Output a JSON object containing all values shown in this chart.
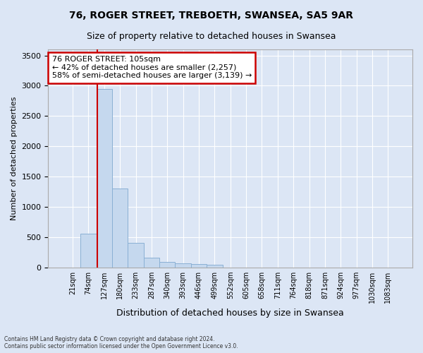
{
  "title1": "76, ROGER STREET, TREBOETH, SWANSEA, SA5 9AR",
  "title2": "Size of property relative to detached houses in Swansea",
  "xlabel": "Distribution of detached houses by size in Swansea",
  "ylabel": "Number of detached properties",
  "footnote": "Contains HM Land Registry data © Crown copyright and database right 2024.\nContains public sector information licensed under the Open Government Licence v3.0.",
  "categories": [
    "21sqm",
    "74sqm",
    "127sqm",
    "180sqm",
    "233sqm",
    "287sqm",
    "340sqm",
    "393sqm",
    "446sqm",
    "499sqm",
    "552sqm",
    "605sqm",
    "658sqm",
    "711sqm",
    "764sqm",
    "818sqm",
    "871sqm",
    "924sqm",
    "977sqm",
    "1030sqm",
    "1083sqm"
  ],
  "values": [
    0,
    555,
    2950,
    1300,
    400,
    155,
    90,
    62,
    50,
    38,
    0,
    0,
    0,
    0,
    0,
    0,
    0,
    0,
    0,
    0,
    0
  ],
  "bar_color": "#c5d8ee",
  "bar_edge_color": "#8ab0d4",
  "plot_bg_color": "#dce6f5",
  "fig_bg_color": "#dce6f5",
  "grid_color": "#ffffff",
  "annotation_text": "76 ROGER STREET: 105sqm\n← 42% of detached houses are smaller (2,257)\n58% of semi-detached houses are larger (3,139) →",
  "annotation_box_facecolor": "#ffffff",
  "annotation_box_edgecolor": "#cc0000",
  "vline_x": 1.55,
  "vline_color": "#cc0000",
  "ylim": [
    0,
    3600
  ],
  "yticks": [
    0,
    500,
    1000,
    1500,
    2000,
    2500,
    3000,
    3500
  ]
}
